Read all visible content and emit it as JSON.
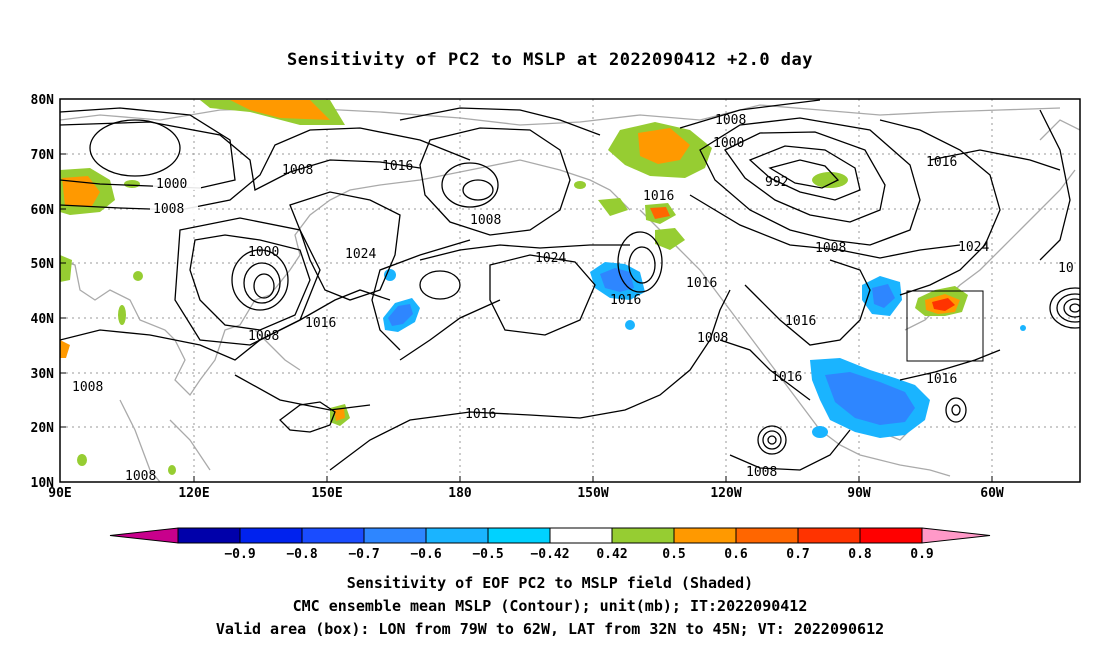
{
  "title": "Sensitivity of PC2 to MSLP at 2022090412 +2.0 day",
  "map": {
    "lat_ticks": [
      "80N",
      "70N",
      "60N",
      "50N",
      "40N",
      "30N",
      "20N",
      "10N"
    ],
    "lon_ticks": [
      "90E",
      "120E",
      "150E",
      "180",
      "150W",
      "120W",
      "90W",
      "60W"
    ],
    "contour_labels": [
      "1000",
      "1008",
      "1016",
      "1008",
      "1024",
      "1000",
      "1008",
      "1016",
      "1008",
      "1016",
      "1008",
      "1024",
      "1016",
      "1008",
      "1016",
      "1008",
      "1000",
      "992",
      "1016",
      "1008",
      "1016",
      "1008",
      "1016",
      "1024",
      "1016",
      "1016",
      "1008",
      "10"
    ],
    "valid_box": {
      "lon": [
        "79W",
        "62W"
      ],
      "lat": [
        "32N",
        "45N"
      ]
    }
  },
  "colorbar": {
    "labels": [
      "−0.9",
      "−0.8",
      "−0.7",
      "−0.6",
      "−0.5",
      "−0.42",
      "0.42",
      "0.5",
      "0.6",
      "0.7",
      "0.8",
      "0.9"
    ],
    "colors": [
      "#c8008c",
      "#0000aa",
      "#0022ee",
      "#1a4cff",
      "#2e86ff",
      "#1ab4ff",
      "#00d2ff",
      "#ffffff",
      "#96cd32",
      "#ff9900",
      "#ff6600",
      "#ff3300",
      "#ff0000",
      "#ff99c8"
    ]
  },
  "footer": {
    "line1": "Sensitivity of EOF PC2 to MSLP field (Shaded)",
    "line2": "CMC ensemble mean MSLP (Contour); unit(mb); IT:2022090412",
    "line3": "Valid area (box): LON from 79W to 62W, LAT from 32N to 45N; VT: 2022090612"
  }
}
